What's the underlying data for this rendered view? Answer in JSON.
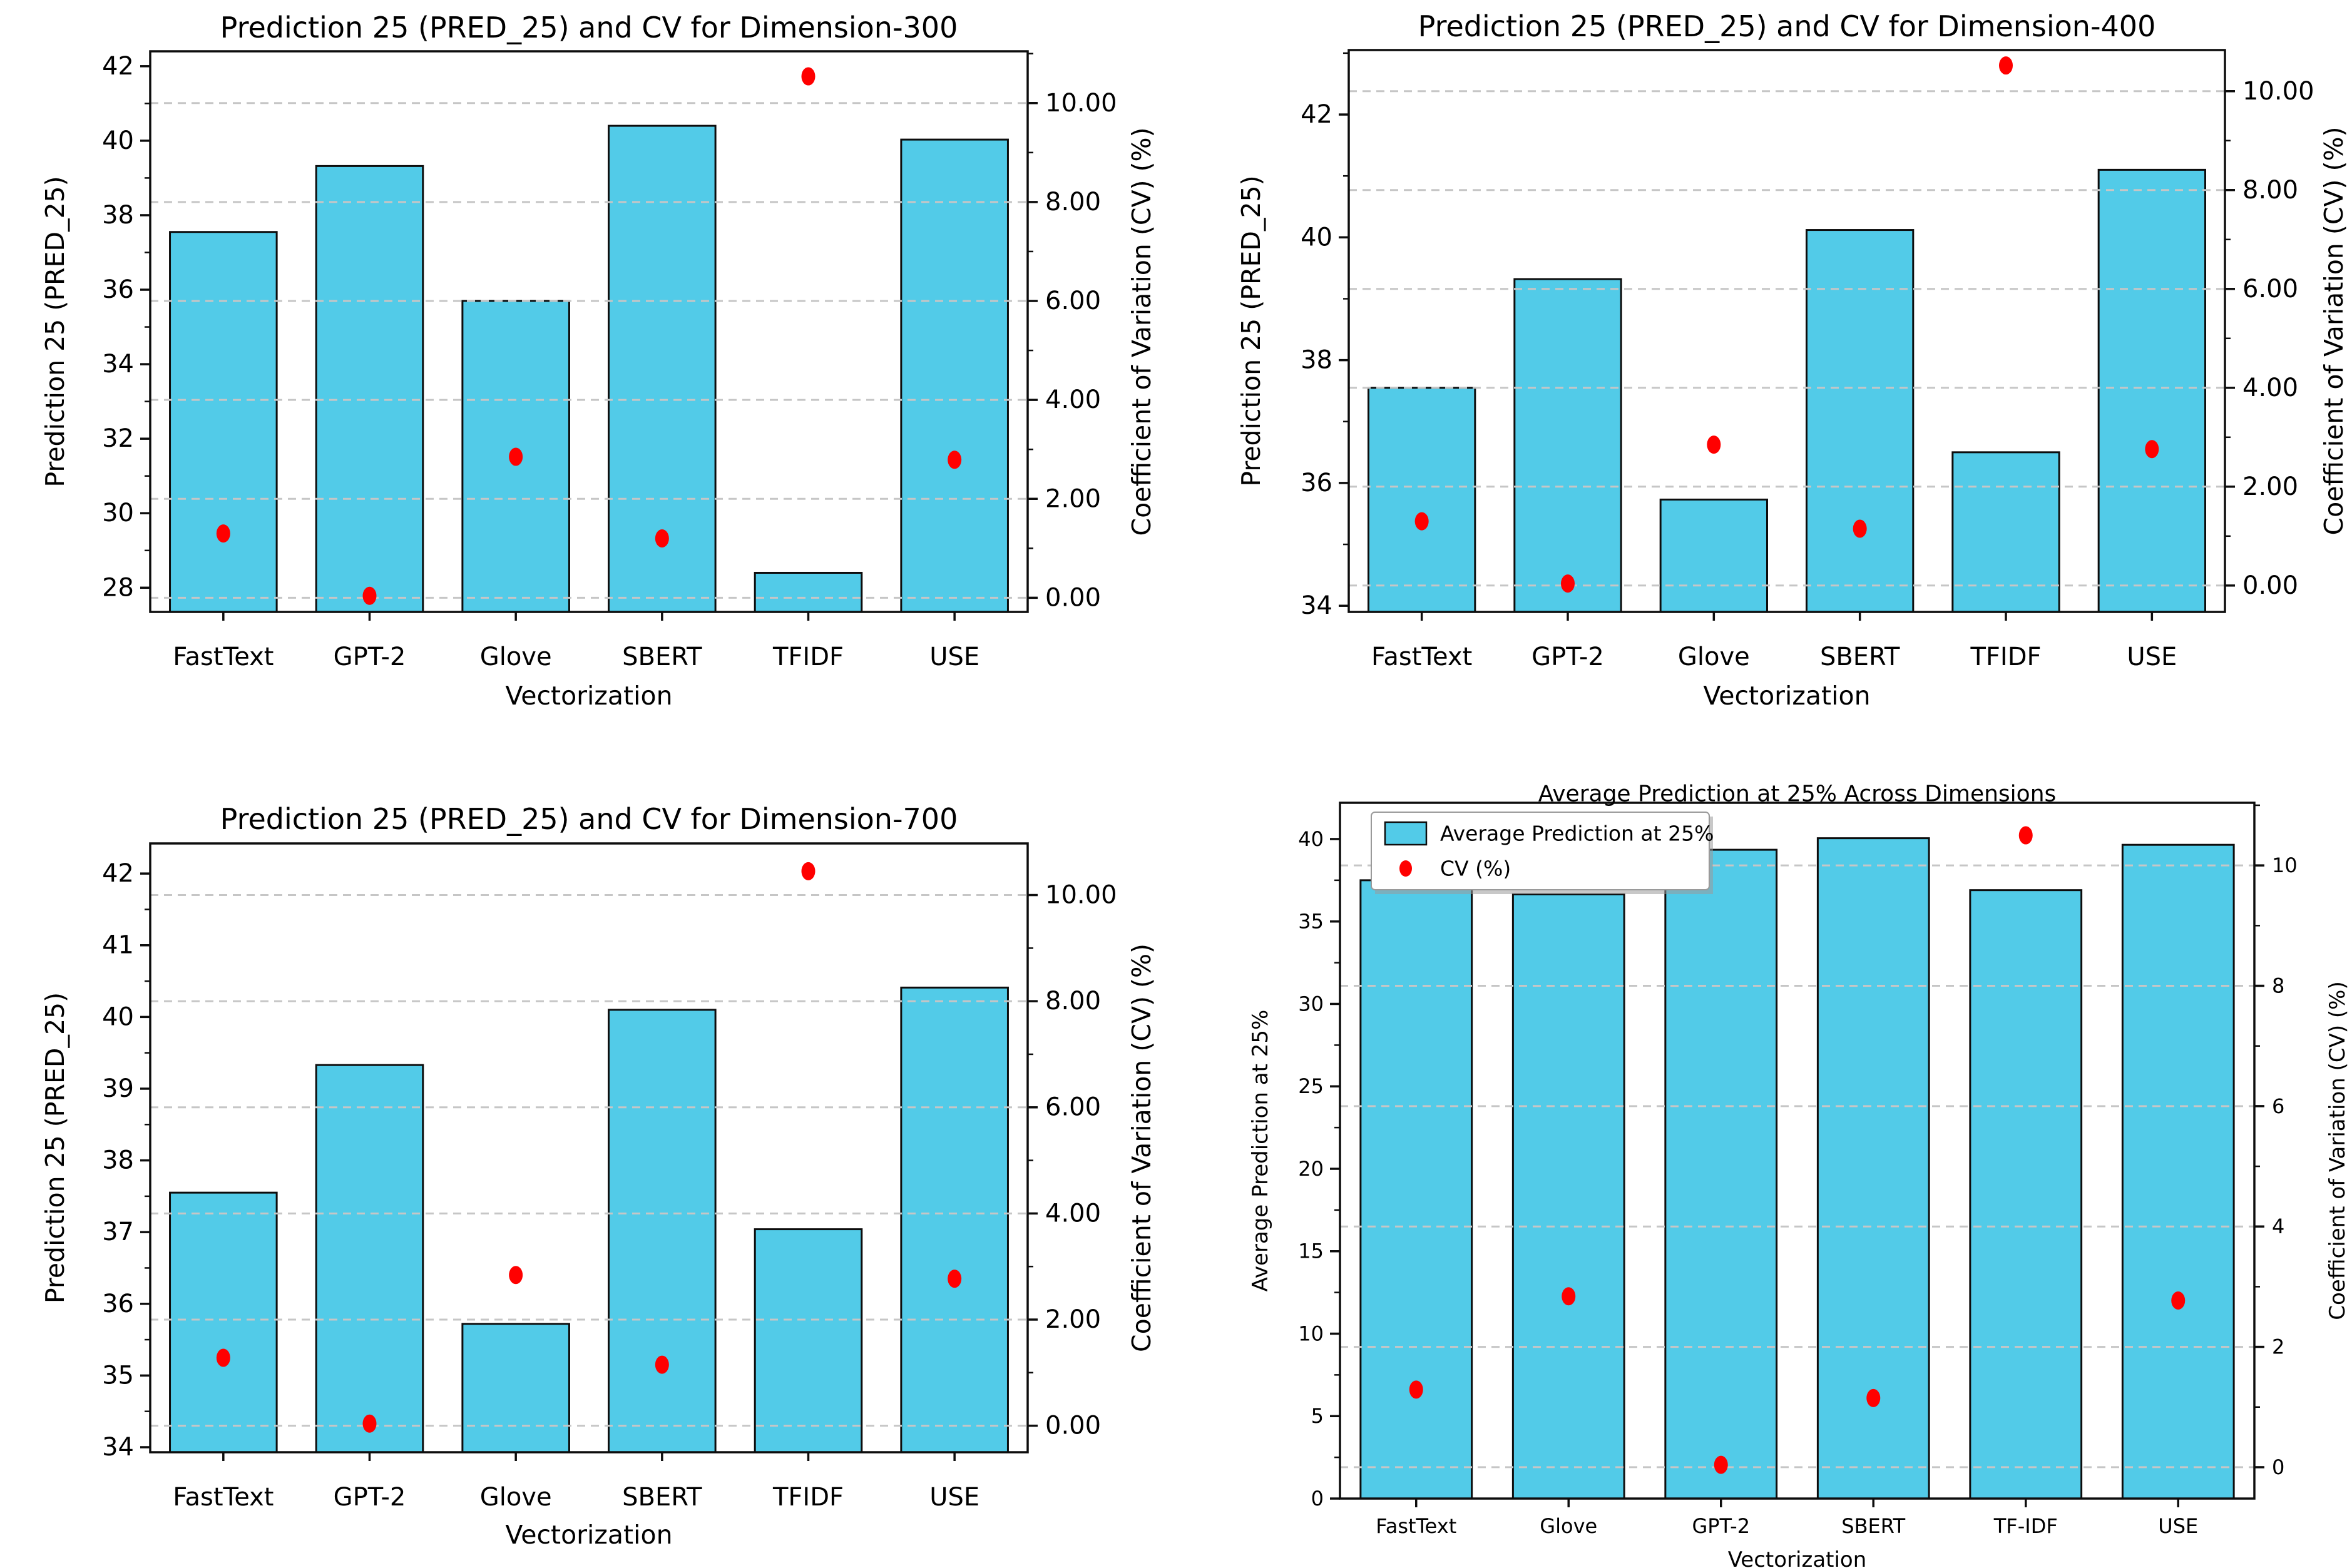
{
  "figure": {
    "background": "#ffffff",
    "bar_fill": "#52CBE8",
    "bar_edge": "#0d0d0d",
    "dot_color": "#FF0000",
    "grid_color": "#c6c6c6",
    "spine_color": "#0d0d0d",
    "text_color": "#000000"
  },
  "chart_data": [
    {
      "id": "dimension-300",
      "type": "bar",
      "title": "Prediction 25 (PRED_25) and CV for Dimension-300",
      "xlabel": "Vectorization",
      "ylabel_left": "Prediction 25 (PRED_25)",
      "ylabel_right": "Coefficient of Variation (CV) (%)",
      "categories": [
        "FastText",
        "GPT-2",
        "Glove",
        "SBERT",
        "TFIDF",
        "USE"
      ],
      "series": [
        {
          "name": "Prediction 25 (PRED_25)",
          "marker": "bar",
          "axis": "left",
          "values": [
            37.55,
            39.32,
            35.7,
            40.4,
            28.4,
            40.03
          ]
        },
        {
          "name": "CV (%)",
          "marker": "dot",
          "axis": "right",
          "values": [
            1.3,
            0.04,
            2.85,
            1.2,
            10.54,
            2.79
          ]
        }
      ],
      "left_axis": {
        "min": 27.35,
        "max": 42.4,
        "major_ticks": [
          28,
          30,
          32,
          34,
          36,
          38,
          40,
          42
        ],
        "tick_labels": [
          "28",
          "30",
          "32",
          "34",
          "36",
          "38",
          "40",
          "42"
        ],
        "minor_step": 1
      },
      "right_axis": {
        "major_ticks": [
          0,
          2,
          4,
          6,
          8,
          10
        ],
        "tick_labels": [
          "0.00",
          "2.00",
          "4.00",
          "6.00",
          "8.00",
          "10.00"
        ],
        "minor_step": 1,
        "left_value_at_cv0": 27.73,
        "left_value_at_cv10": 41.01
      },
      "grid": "dashed-horizontal-at-right-ticks",
      "legend": null
    },
    {
      "id": "dimension-400",
      "type": "bar",
      "title": "Prediction 25 (PRED_25) and CV for Dimension-400",
      "xlabel": "Vectorization",
      "ylabel_left": "Prediction 25 (PRED_25)",
      "ylabel_right": "Coefficient of Variation (CV) (%)",
      "categories": [
        "FastText",
        "GPT-2",
        "Glove",
        "SBERT",
        "TFIDF",
        "USE"
      ],
      "series": [
        {
          "name": "Prediction 25 (PRED_25)",
          "marker": "bar",
          "axis": "left",
          "values": [
            37.55,
            39.32,
            35.73,
            40.12,
            36.5,
            41.1
          ]
        },
        {
          "name": "CV (%)",
          "marker": "dot",
          "axis": "right",
          "values": [
            1.3,
            0.04,
            2.85,
            1.15,
            10.52,
            2.76
          ]
        }
      ],
      "left_axis": {
        "min": 33.9,
        "max": 43.05,
        "major_ticks": [
          34,
          36,
          38,
          40,
          42
        ],
        "tick_labels": [
          "34",
          "36",
          "38",
          "40",
          "42"
        ],
        "minor_step": 1
      },
      "right_axis": {
        "major_ticks": [
          0,
          2,
          4,
          6,
          8,
          10
        ],
        "tick_labels": [
          "0.00",
          "2.00",
          "4.00",
          "6.00",
          "8.00",
          "10.00"
        ],
        "minor_step": 1,
        "left_value_at_cv0": 34.33,
        "left_value_at_cv10": 42.38
      },
      "grid": "dashed-horizontal-at-right-ticks",
      "legend": null
    },
    {
      "id": "dimension-700",
      "type": "bar",
      "title": "Prediction 25 (PRED_25) and CV for Dimension-700",
      "xlabel": "Vectorization",
      "ylabel_left": "Prediction 25 (PRED_25)",
      "ylabel_right": "Coefficient of Variation (CV) (%)",
      "categories": [
        "FastText",
        "GPT-2",
        "Glove",
        "SBERT",
        "TFIDF",
        "USE"
      ],
      "series": [
        {
          "name": "Prediction 25 (PRED_25)",
          "marker": "bar",
          "axis": "left",
          "values": [
            37.55,
            39.33,
            35.72,
            40.1,
            37.04,
            40.41
          ]
        },
        {
          "name": "CV (%)",
          "marker": "dot",
          "axis": "right",
          "values": [
            1.28,
            0.04,
            2.84,
            1.15,
            10.45,
            2.77
          ]
        }
      ],
      "left_axis": {
        "min": 33.93,
        "max": 42.42,
        "major_ticks": [
          34,
          35,
          36,
          37,
          38,
          39,
          40,
          41,
          42
        ],
        "tick_labels": [
          "34",
          "35",
          "36",
          "37",
          "38",
          "39",
          "40",
          "41",
          "42"
        ],
        "minor_step": 0.5
      },
      "right_axis": {
        "major_ticks": [
          0,
          2,
          4,
          6,
          8,
          10
        ],
        "tick_labels": [
          "0.00",
          "2.00",
          "4.00",
          "6.00",
          "8.00",
          "10.00"
        ],
        "minor_step": 1,
        "left_value_at_cv0": 34.3,
        "left_value_at_cv10": 41.7
      },
      "grid": "dashed-horizontal-at-right-ticks",
      "legend": null
    },
    {
      "id": "average-across-dimensions",
      "type": "bar",
      "title": "Average Prediction at 25% Across Dimensions",
      "xlabel": "Vectorization",
      "ylabel_left": "Average Prediction at 25%",
      "ylabel_right": "Coefficient of Variation (CV) (%)",
      "categories": [
        "FastText",
        "Glove",
        "GPT-2",
        "SBERT",
        "TF-IDF",
        "USE"
      ],
      "series": [
        {
          "name": "Average Prediction at 25%",
          "marker": "bar",
          "axis": "left",
          "values": [
            37.5,
            36.65,
            39.35,
            40.05,
            36.9,
            39.65
          ]
        },
        {
          "name": "CV (%)",
          "marker": "dot",
          "axis": "right",
          "values": [
            1.29,
            2.84,
            0.04,
            1.15,
            10.5,
            2.77
          ]
        }
      ],
      "left_axis": {
        "min": 0,
        "max": 42.2,
        "major_ticks": [
          0,
          5,
          10,
          15,
          20,
          25,
          30,
          35,
          40
        ],
        "tick_labels": [
          "0",
          "5",
          "10",
          "15",
          "20",
          "25",
          "30",
          "35",
          "40"
        ],
        "minor_step": 2.5
      },
      "right_axis": {
        "major_ticks": [
          0,
          2,
          4,
          6,
          8,
          10
        ],
        "tick_labels": [
          "0",
          "2",
          "4",
          "6",
          "8",
          "10"
        ],
        "minor_step": 1,
        "left_value_at_cv0": 1.9,
        "left_value_at_cv10": 38.4
      },
      "grid": "dashed-horizontal-at-right-ticks",
      "legend": {
        "position": "upper-left",
        "items": [
          {
            "label": "Average Prediction at 25%",
            "marker": "bar"
          },
          {
            "label": "CV (%)",
            "marker": "dot"
          }
        ]
      }
    }
  ]
}
